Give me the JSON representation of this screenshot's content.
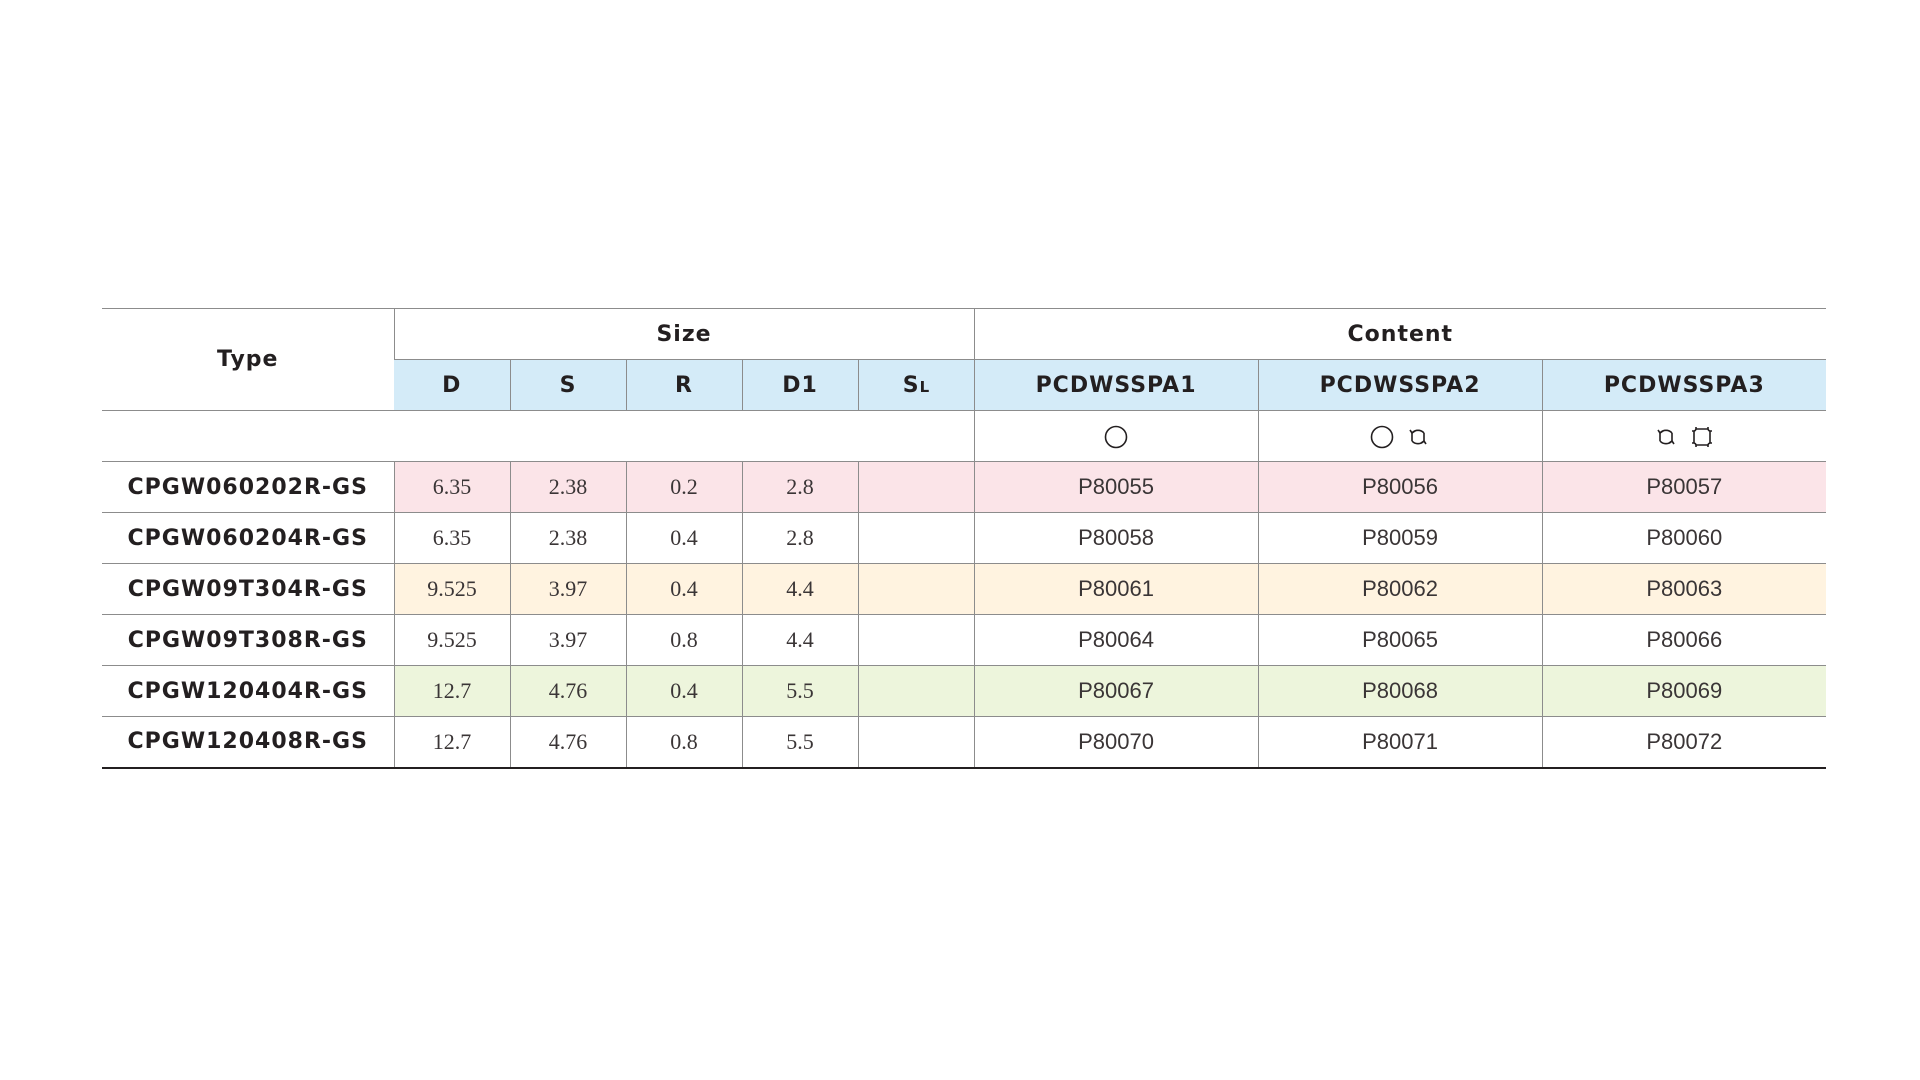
{
  "header": {
    "type": "Type",
    "size": "Size",
    "content": "Content",
    "size_columns": [
      {
        "main": "D",
        "sub": ""
      },
      {
        "main": "S",
        "sub": ""
      },
      {
        "main": "R",
        "sub": ""
      },
      {
        "main": "D1",
        "sub": ""
      },
      {
        "main": "S",
        "sub": "L"
      }
    ],
    "content_columns": [
      "PCDWSSPA1",
      "PCDWSSPA2",
      "PCDWSSPA3"
    ]
  },
  "symbols": [
    [
      "circle-icon"
    ],
    [
      "circle-icon",
      "rotate-arrows-icon"
    ],
    [
      "rotate-arrows-icon",
      "square-corners-icon"
    ]
  ],
  "rows": [
    {
      "type": "CPGW060202R-GS",
      "tint": "pink",
      "size": [
        "6.35",
        "2.38",
        "0.2",
        "2.8",
        ""
      ],
      "content": [
        "P80055",
        "P80056",
        "P80057"
      ]
    },
    {
      "type": "CPGW060204R-GS",
      "tint": "none",
      "size": [
        "6.35",
        "2.38",
        "0.4",
        "2.8",
        ""
      ],
      "content": [
        "P80058",
        "P80059",
        "P80060"
      ]
    },
    {
      "type": "CPGW09T304R-GS",
      "tint": "yellow",
      "size": [
        "9.525",
        "3.97",
        "0.4",
        "4.4",
        ""
      ],
      "content": [
        "P80061",
        "P80062",
        "P80063"
      ]
    },
    {
      "type": "CPGW09T308R-GS",
      "tint": "none",
      "size": [
        "9.525",
        "3.97",
        "0.8",
        "4.4",
        ""
      ],
      "content": [
        "P80064",
        "P80065",
        "P80066"
      ]
    },
    {
      "type": "CPGW120404R-GS",
      "tint": "green",
      "size": [
        "12.7",
        "4.76",
        "0.4",
        "5.5",
        ""
      ],
      "content": [
        "P80067",
        "P80068",
        "P80069"
      ]
    },
    {
      "type": "CPGW120408R-GS",
      "tint": "none",
      "size": [
        "12.7",
        "4.76",
        "0.8",
        "5.5",
        ""
      ],
      "content": [
        "P80070",
        "P80071",
        "P80072"
      ]
    }
  ],
  "colors": {
    "header_blue": "#d4ebf8",
    "tint_pink": "#fbe4e8",
    "tint_yellow": "#fff3e0",
    "tint_green": "#edf5dc"
  }
}
